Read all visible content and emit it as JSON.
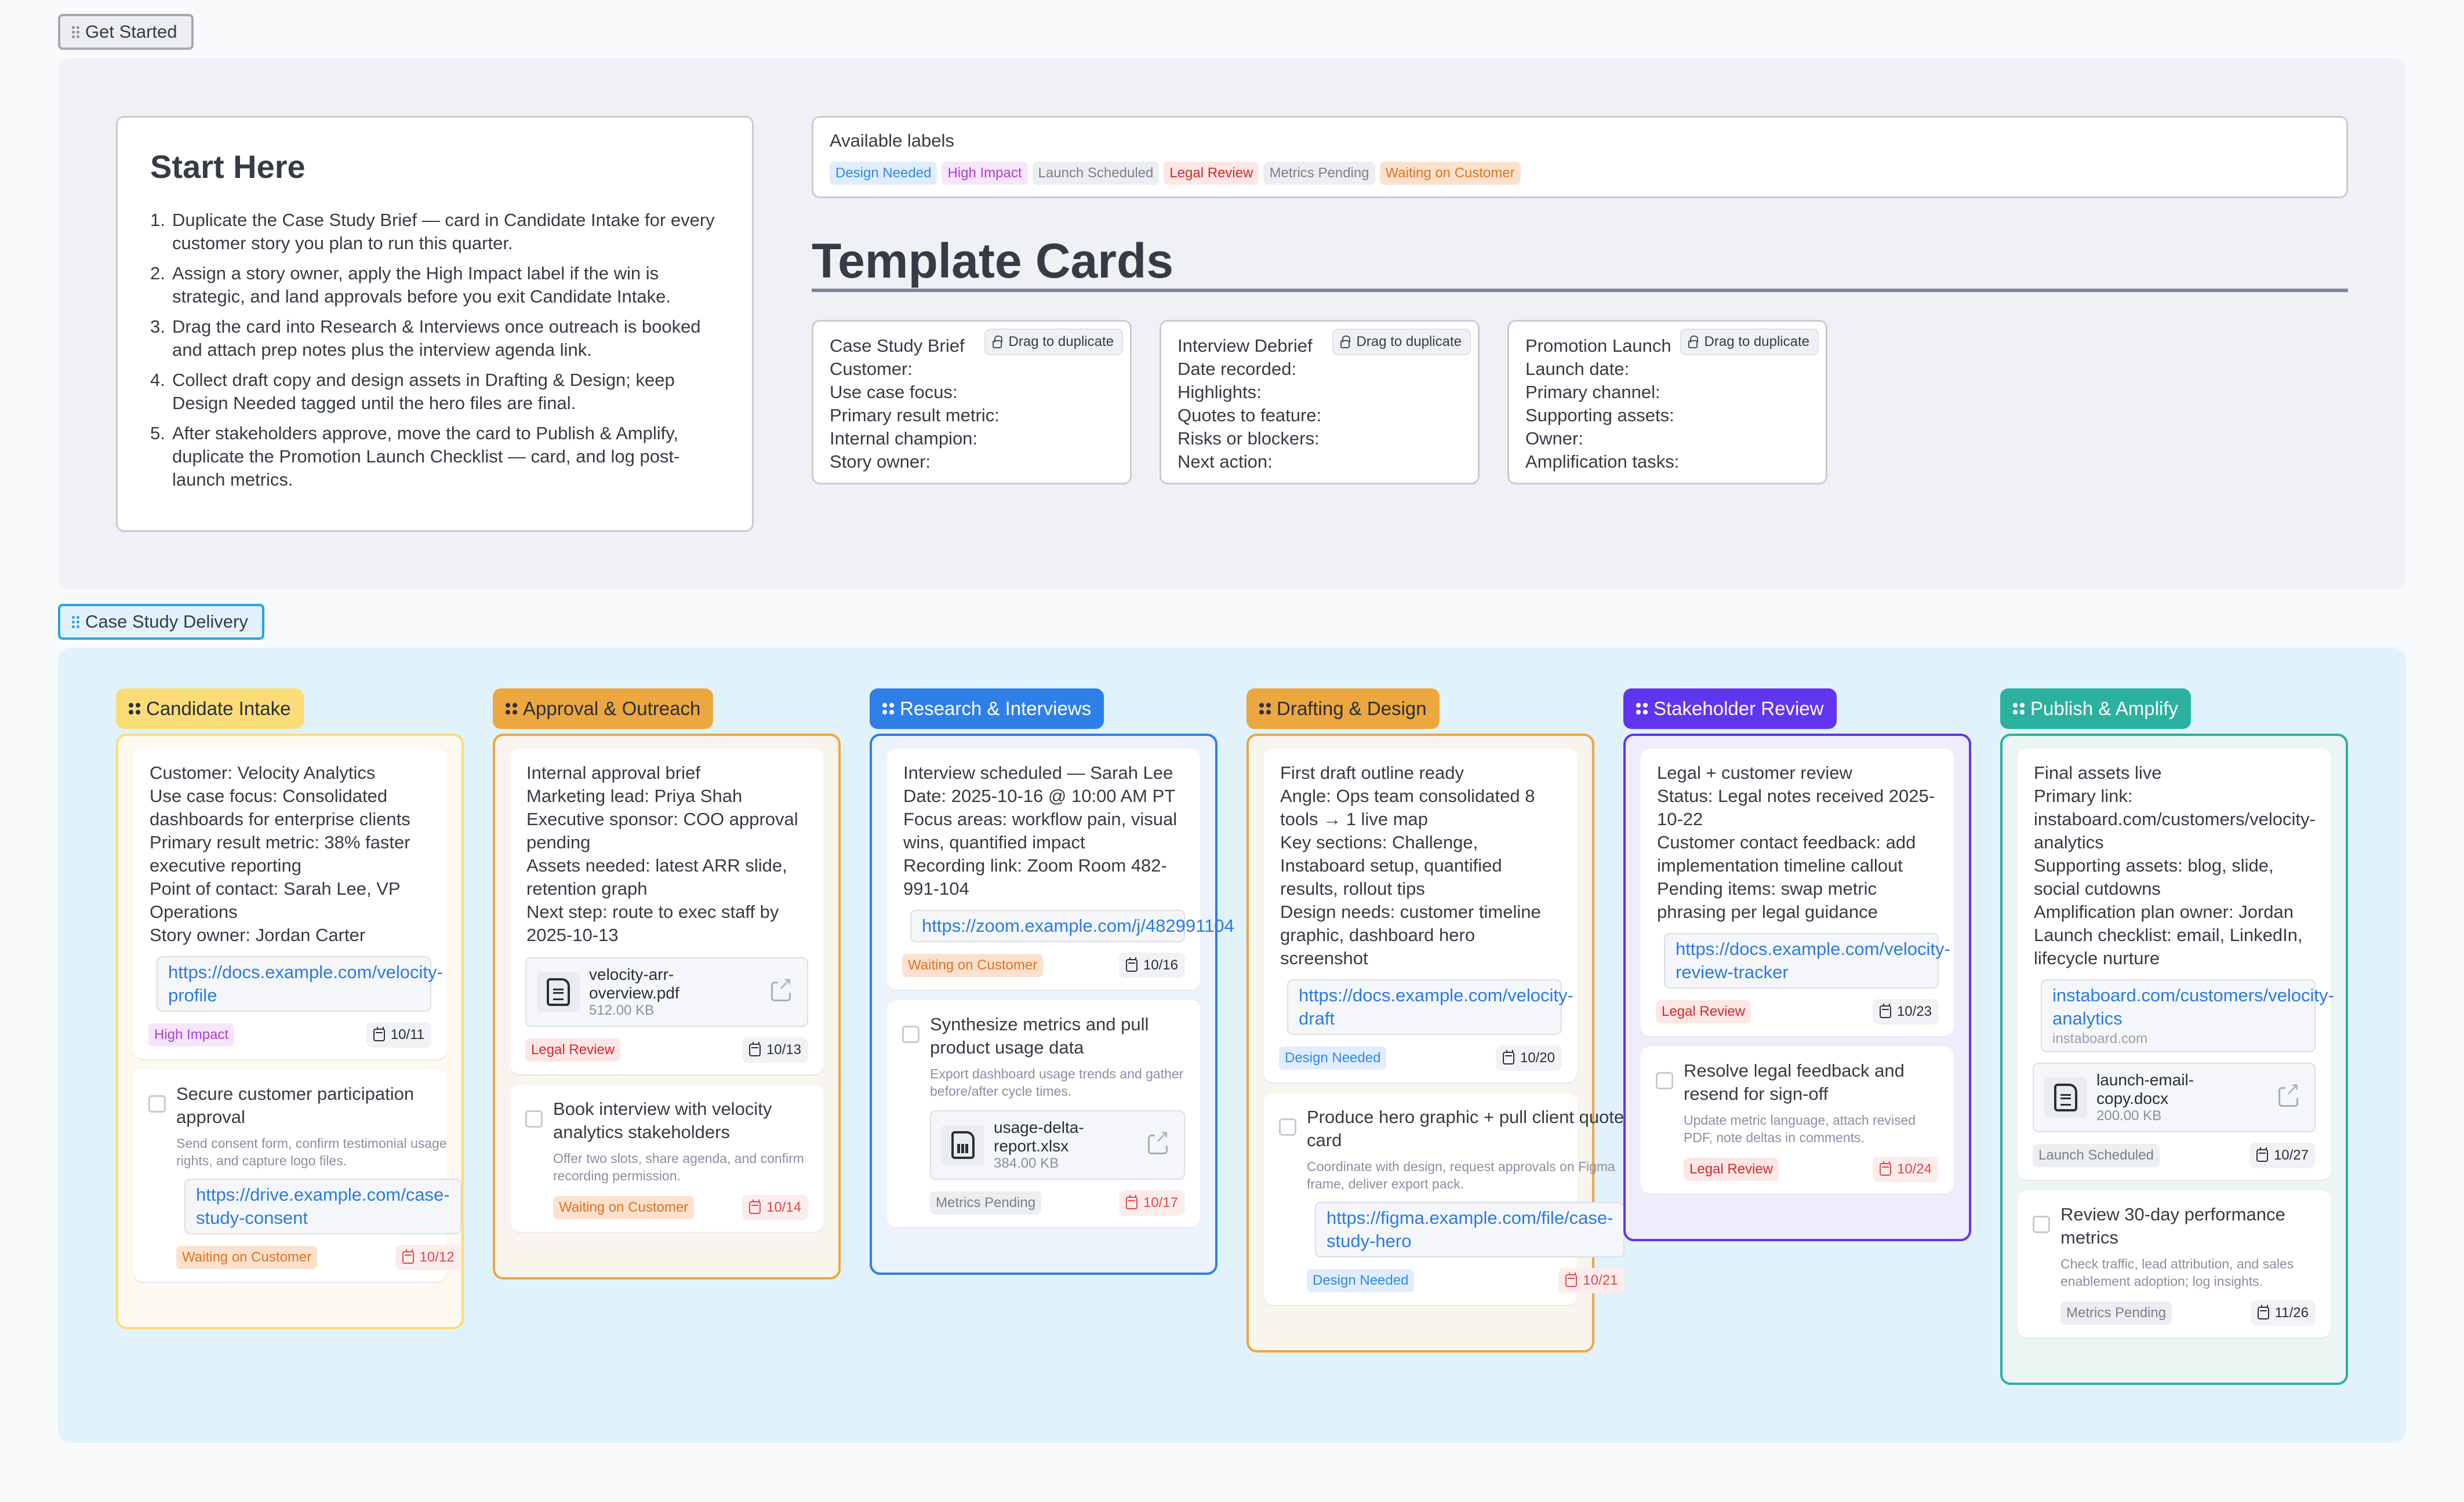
{
  "frames": {
    "get_started": "Get Started",
    "case_study_delivery": "Case Study Delivery"
  },
  "start_here": {
    "title": "Start Here",
    "steps": [
      {
        "num": "1.",
        "text": "Duplicate the Case Study Brief — card in Candidate Intake for every customer story you plan to run this quarter."
      },
      {
        "num": "2.",
        "text": "Assign a story owner, apply the High Impact label if the win is strategic, and land approvals before you exit Candidate Intake."
      },
      {
        "num": "3.",
        "text": "Drag the card into Research & Interviews once outreach is booked and attach prep notes plus the interview agenda link."
      },
      {
        "num": "4.",
        "text": "Collect draft copy and design assets in Drafting & Design; keep Design Needed tagged until the hero files are final."
      },
      {
        "num": "5.",
        "text": "After stakeholders approve, move the card to Publish & Amplify, duplicate the Promotion Launch Checklist — card, and log post-launch metrics."
      }
    ]
  },
  "labels": {
    "title": "Available labels",
    "items": [
      "Design Needed",
      "High Impact",
      "Launch Scheduled",
      "Legal Review",
      "Metrics Pending",
      "Waiting on Customer"
    ],
    "colors": {
      "Design Needed": "#2d8be6",
      "High Impact": "#b03ad6",
      "Launch Scheduled": "#7c808c",
      "Legal Review": "#d12a2a",
      "Metrics Pending": "#7c808c",
      "Waiting on Customer": "#e2701f"
    }
  },
  "templates": {
    "title": "Template Cards",
    "drag_label": "Drag to duplicate",
    "cards": [
      {
        "name": "Case Study Brief",
        "fields": [
          "Customer:",
          "Use case focus:",
          "Primary result metric:",
          "Internal champion:",
          "Story owner:"
        ]
      },
      {
        "name": "Interview Debrief",
        "fields": [
          "Date recorded:",
          "Highlights:",
          "Quotes to feature:",
          "Risks or blockers:",
          "Next action:"
        ]
      },
      {
        "name": "Promotion Launch",
        "fields": [
          "Launch date:",
          "Primary channel:",
          "Supporting assets:",
          "Owner:",
          "Amplification tasks:"
        ]
      }
    ]
  },
  "board": {
    "columns": [
      {
        "title": "Candidate Intake",
        "color": "#fbdd78",
        "cards": [
          {
            "type": "note",
            "lines": [
              "Customer: Velocity Analytics",
              "Use case focus: Consolidated dashboards for enterprise clients",
              "Primary result metric: 38% faster executive reporting",
              "Point of contact: Sarah Lee, VP Operations",
              "Story owner: Jordan Carter"
            ],
            "link": "https://docs.example.com/velocity-profile",
            "label": "High Impact",
            "date": "10/11",
            "overdue": false
          },
          {
            "type": "task",
            "title": "Secure customer participation approval",
            "desc": "Send consent form, confirm testimonial usage rights, and capture logo files.",
            "link": "https://drive.example.com/case-study-consent",
            "label": "Waiting on Customer",
            "date": "10/12",
            "overdue": true
          }
        ]
      },
      {
        "title": "Approval & Outreach",
        "color": "#eca73f",
        "cards": [
          {
            "type": "note",
            "lines": [
              "Internal approval brief",
              "Marketing lead: Priya Shah",
              "Executive sponsor: COO approval pending",
              "Assets needed: latest ARR slide, retention graph",
              "Next step: route to exec staff by 2025-10-13"
            ],
            "file": {
              "name": "velocity-arr-overview.pdf",
              "size": "512.00 KB",
              "kind": "doc"
            },
            "label": "Legal Review",
            "date": "10/13",
            "overdue": false
          },
          {
            "type": "task",
            "title": "Book interview with velocity analytics stakeholders",
            "desc": "Offer two slots, share agenda, and confirm recording permission.",
            "label": "Waiting on Customer",
            "date": "10/14",
            "overdue": true
          }
        ]
      },
      {
        "title": "Research & Interviews",
        "color": "#2f7fe8",
        "cards": [
          {
            "type": "note",
            "lines": [
              "Interview scheduled — Sarah Lee",
              "Date: 2025-10-16 @ 10:00 AM PT",
              "Focus areas: workflow pain, visual wins, quantified impact",
              "Recording link: Zoom Room 482-991-104"
            ],
            "link": "https://zoom.example.com/j/482991104",
            "label": "Waiting on Customer",
            "date": "10/16",
            "overdue": false
          },
          {
            "type": "task",
            "title": "Synthesize metrics and pull product usage data",
            "desc": "Export dashboard usage trends and gather before/after cycle times.",
            "file": {
              "name": "usage-delta-report.xlsx",
              "size": "384.00 KB",
              "kind": "sheet"
            },
            "label": "Metrics Pending",
            "date": "10/17",
            "overdue": true
          }
        ]
      },
      {
        "title": "Drafting & Design",
        "color": "#eca73f",
        "cards": [
          {
            "type": "note",
            "lines": [
              "First draft outline ready",
              "Angle: Ops team consolidated 8 tools → 1 live map",
              "Key sections: Challenge, Instaboard setup, quantified results, rollout tips",
              "Design needs: customer timeline graphic, dashboard hero screenshot"
            ],
            "link": "https://docs.example.com/velocity-draft",
            "label": "Design Needed",
            "date": "10/20",
            "overdue": false
          },
          {
            "type": "task",
            "title": "Produce hero graphic + pull client quote card",
            "desc": "Coordinate with design, request approvals on Figma frame, deliver export pack.",
            "link": "https://figma.example.com/file/case-study-hero",
            "label": "Design Needed",
            "date": "10/21",
            "overdue": true
          }
        ]
      },
      {
        "title": "Stakeholder Review",
        "color": "#6135f0",
        "cards": [
          {
            "type": "note",
            "lines": [
              "Legal + customer review",
              "Status: Legal notes received 2025-10-22",
              "Customer contact feedback: add implementation timeline callout",
              "Pending items: swap metric phrasing per legal guidance"
            ],
            "link": "https://docs.example.com/velocity-review-tracker",
            "label": "Legal Review",
            "date": "10/23",
            "overdue": false
          },
          {
            "type": "task",
            "title": "Resolve legal feedback and resend for sign-off",
            "desc": "Update metric language, attach revised PDF, note deltas in comments.",
            "label": "Legal Review",
            "date": "10/24",
            "overdue": true
          }
        ]
      },
      {
        "title": "Publish & Amplify",
        "color": "#2bb19f",
        "cards": [
          {
            "type": "note",
            "lines": [
              "Final assets live",
              "Primary link: instaboard.com/customers/velocity-analytics",
              "Supporting assets: blog, slide, social cutdowns",
              "Amplification plan owner: Jordan",
              "Launch checklist: email, LinkedIn, lifecycle nurture"
            ],
            "link": "instaboard.com/customers/velocity-analytics",
            "link_domain": "instaboard.com",
            "file": {
              "name": "launch-email-copy.docx",
              "size": "200.00 KB",
              "kind": "doc"
            },
            "label": "Launch Scheduled",
            "date": "10/27",
            "overdue": false
          },
          {
            "type": "task",
            "title": "Review 30-day performance metrics",
            "desc": "Check traffic, lead attribution, and sales enablement adoption; log insights.",
            "label": "Metrics Pending",
            "date": "11/26",
            "overdue": false
          }
        ]
      }
    ]
  }
}
